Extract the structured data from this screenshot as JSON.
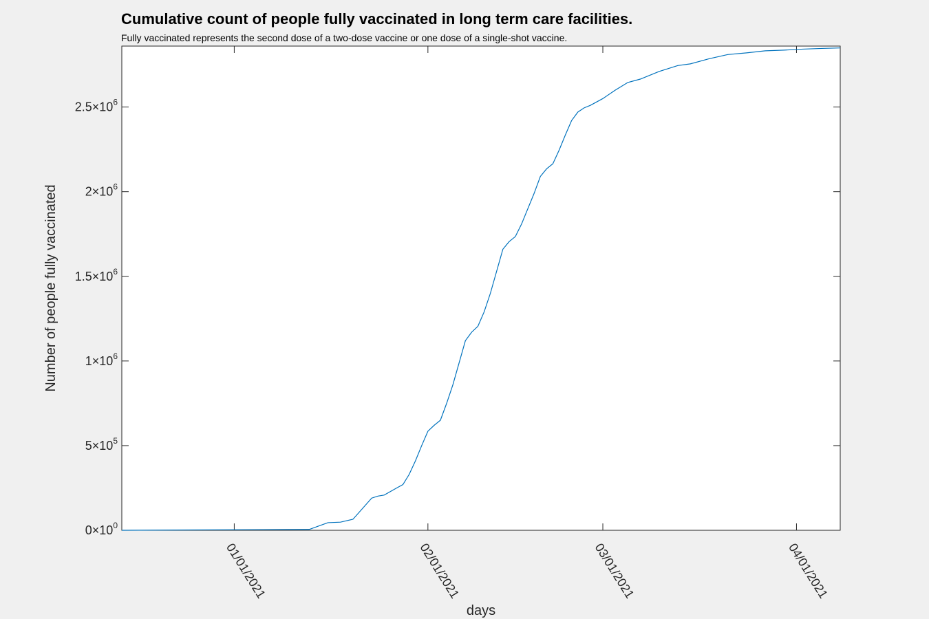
{
  "chart_data": {
    "type": "line",
    "title": "Cumulative count of people fully vaccinated in long term care facilities.",
    "subtitle": "Fully vaccinated represents the second dose of a two-dose vaccine or one dose of a single-shot vaccine.",
    "xlabel": "days",
    "ylabel": "Number of people fully vaccinated",
    "xlim": [
      "2020-12-14",
      "2021-04-08"
    ],
    "ylim": [
      0,
      2860000
    ],
    "grid": false,
    "x_ticks": [
      "2021-01-01",
      "2021-02-01",
      "2021-03-01",
      "2021-04-01"
    ],
    "x_tick_labels": [
      "01/01/2021",
      "02/01/2021",
      "03/01/2021",
      "04/01/2021"
    ],
    "y_ticks": [
      0,
      500000,
      1000000,
      1500000,
      2000000,
      2500000
    ],
    "y_tick_labels": [
      {
        "mantissa": "0",
        "exp": "0"
      },
      {
        "mantissa": "5",
        "exp": "5"
      },
      {
        "mantissa": "1",
        "exp": "6"
      },
      {
        "mantissa": "1.5",
        "exp": "6"
      },
      {
        "mantissa": "2",
        "exp": "6"
      },
      {
        "mantissa": "2.5",
        "exp": "6"
      }
    ],
    "series": [
      {
        "color": "#0072bd",
        "points": [
          [
            "2020-12-14",
            0
          ],
          [
            "2021-01-13",
            5000
          ],
          [
            "2021-01-16",
            45000
          ],
          [
            "2021-01-18",
            48000
          ],
          [
            "2021-01-20",
            65000
          ],
          [
            "2021-01-23",
            190000
          ],
          [
            "2021-01-24",
            202000
          ],
          [
            "2021-01-25",
            208000
          ],
          [
            "2021-01-27",
            250000
          ],
          [
            "2021-01-28",
            270000
          ],
          [
            "2021-01-29",
            330000
          ],
          [
            "2021-01-30",
            410000
          ],
          [
            "2021-01-31",
            500000
          ],
          [
            "2021-02-01",
            585000
          ],
          [
            "2021-02-02",
            620000
          ],
          [
            "2021-02-03",
            650000
          ],
          [
            "2021-02-04",
            750000
          ],
          [
            "2021-02-05",
            860000
          ],
          [
            "2021-02-06",
            990000
          ],
          [
            "2021-02-07",
            1120000
          ],
          [
            "2021-02-08",
            1170000
          ],
          [
            "2021-02-09",
            1205000
          ],
          [
            "2021-02-10",
            1290000
          ],
          [
            "2021-02-11",
            1400000
          ],
          [
            "2021-02-12",
            1530000
          ],
          [
            "2021-02-13",
            1660000
          ],
          [
            "2021-02-14",
            1705000
          ],
          [
            "2021-02-15",
            1735000
          ],
          [
            "2021-02-16",
            1810000
          ],
          [
            "2021-02-17",
            1900000
          ],
          [
            "2021-02-18",
            1990000
          ],
          [
            "2021-02-19",
            2090000
          ],
          [
            "2021-02-20",
            2135000
          ],
          [
            "2021-02-21",
            2165000
          ],
          [
            "2021-02-22",
            2245000
          ],
          [
            "2021-02-23",
            2335000
          ],
          [
            "2021-02-24",
            2420000
          ],
          [
            "2021-02-25",
            2470000
          ],
          [
            "2021-02-26",
            2495000
          ],
          [
            "2021-02-27",
            2510000
          ],
          [
            "2021-03-01",
            2550000
          ],
          [
            "2021-03-03",
            2600000
          ],
          [
            "2021-03-05",
            2645000
          ],
          [
            "2021-03-07",
            2665000
          ],
          [
            "2021-03-10",
            2710000
          ],
          [
            "2021-03-13",
            2745000
          ],
          [
            "2021-03-15",
            2755000
          ],
          [
            "2021-03-18",
            2785000
          ],
          [
            "2021-03-21",
            2810000
          ],
          [
            "2021-03-24",
            2820000
          ],
          [
            "2021-03-27",
            2832000
          ],
          [
            "2021-03-30",
            2836000
          ],
          [
            "2021-04-02",
            2842000
          ],
          [
            "2021-04-05",
            2846000
          ],
          [
            "2021-04-08",
            2849000
          ]
        ]
      }
    ]
  }
}
